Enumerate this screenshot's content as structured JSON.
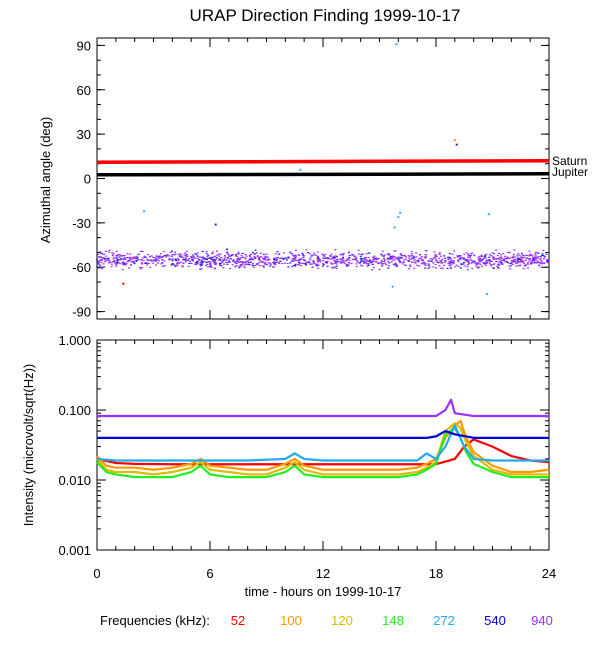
{
  "chart_data": [
    {
      "type": "scatter",
      "title": "URAP Direction Finding  1999-10-17",
      "ylabel": "Azimuthal angle (deg)",
      "xlim": [
        0,
        24
      ],
      "ylim": [
        -95,
        95
      ],
      "yticks": [
        "90",
        "60",
        "30",
        "0",
        "-30",
        "-60",
        "-90"
      ],
      "reference_lines": [
        {
          "name": "Saturn",
          "color": "#ff0000",
          "y": [
            11,
            11.5,
            12
          ]
        },
        {
          "name": "Jupiter",
          "color": "#000000",
          "y": [
            2.5,
            2.8,
            3.2
          ]
        }
      ],
      "cluster": {
        "color": "#9b30ff",
        "color2": "#2020e0",
        "center": -55,
        "spread": 8,
        "count": 1400
      },
      "outliers": [
        {
          "x": 1.4,
          "y": -71,
          "color": "#ff0000"
        },
        {
          "x": 2.5,
          "y": -22,
          "color": "#33aaff"
        },
        {
          "x": 4.2,
          "y": -55,
          "color": "#2020e0"
        },
        {
          "x": 6.3,
          "y": -31,
          "color": "#2020e0"
        },
        {
          "x": 10.8,
          "y": 6,
          "color": "#33aaff"
        },
        {
          "x": 15.8,
          "y": -33,
          "color": "#33aaff"
        },
        {
          "x": 15.7,
          "y": -73,
          "color": "#33aaff"
        },
        {
          "x": 16.1,
          "y": -23,
          "color": "#33aaff"
        },
        {
          "x": 16.0,
          "y": -26,
          "color": "#33aaff"
        },
        {
          "x": 15.9,
          "y": 91,
          "color": "#33aaff"
        },
        {
          "x": 19.0,
          "y": 26,
          "color": "#ff9900"
        },
        {
          "x": 19.1,
          "y": 23,
          "color": "#2020e0"
        },
        {
          "x": 20.8,
          "y": -24,
          "color": "#33aaff"
        },
        {
          "x": 20.7,
          "y": -78,
          "color": "#33aaff"
        }
      ]
    },
    {
      "type": "line",
      "ylabel": "Intensity (microvolt/sqrt(Hz))",
      "xlabel": "time - hours on 1999-10-17",
      "xlim": [
        0,
        24
      ],
      "ylim": [
        0.001,
        1.0
      ],
      "yscale": "log",
      "xticks": [
        "0",
        "6",
        "12",
        "18",
        "24"
      ],
      "yticks": [
        "1.000",
        "0.100",
        "0.010",
        "0.001"
      ],
      "series": [
        {
          "name": "52",
          "color": "#ff0000",
          "x": [
            0,
            1,
            2,
            4,
            6,
            8,
            10,
            12,
            14,
            16,
            18,
            19,
            19.5,
            20,
            21,
            22,
            23,
            24
          ],
          "y": [
            0.02,
            0.0175,
            0.017,
            0.0168,
            0.0168,
            0.0168,
            0.0168,
            0.0168,
            0.0168,
            0.0168,
            0.0168,
            0.02,
            0.03,
            0.038,
            0.03,
            0.022,
            0.019,
            0.018
          ]
        },
        {
          "name": "100",
          "color": "#ff9900",
          "x": [
            0,
            0.5,
            1,
            2,
            3,
            4,
            5,
            5.5,
            6,
            7,
            8,
            9,
            10,
            10.5,
            11,
            12,
            13,
            14,
            15,
            16,
            17,
            17.5,
            18,
            18.5,
            19,
            19.3,
            19.6,
            20,
            21,
            22,
            23,
            24
          ],
          "y": [
            0.022,
            0.016,
            0.015,
            0.015,
            0.014,
            0.015,
            0.017,
            0.02,
            0.016,
            0.015,
            0.014,
            0.014,
            0.017,
            0.02,
            0.016,
            0.014,
            0.014,
            0.014,
            0.014,
            0.014,
            0.015,
            0.017,
            0.02,
            0.04,
            0.06,
            0.07,
            0.04,
            0.025,
            0.016,
            0.013,
            0.013,
            0.014
          ]
        },
        {
          "name": "120",
          "color": "#ddbb00",
          "x": [
            0,
            0.5,
            1,
            2,
            3,
            4,
            5,
            5.5,
            6,
            7,
            8,
            9,
            10,
            10.5,
            11,
            12,
            13,
            14,
            15,
            16,
            17,
            17.5,
            18,
            18.5,
            19,
            19.3,
            19.6,
            20,
            21,
            22,
            23,
            24
          ],
          "y": [
            0.02,
            0.014,
            0.013,
            0.013,
            0.012,
            0.013,
            0.015,
            0.018,
            0.014,
            0.013,
            0.012,
            0.012,
            0.015,
            0.018,
            0.014,
            0.012,
            0.012,
            0.012,
            0.012,
            0.012,
            0.013,
            0.015,
            0.018,
            0.05,
            0.065,
            0.055,
            0.035,
            0.022,
            0.014,
            0.012,
            0.012,
            0.012
          ]
        },
        {
          "name": "148",
          "color": "#22ee22",
          "x": [
            0,
            0.5,
            1,
            2,
            3,
            4,
            5,
            5.5,
            6,
            7,
            8,
            9,
            10,
            10.5,
            11,
            12,
            13,
            14,
            15,
            16,
            17,
            17.5,
            18,
            18.5,
            19,
            19.3,
            19.6,
            20,
            21,
            22,
            23,
            24
          ],
          "y": [
            0.018,
            0.013,
            0.012,
            0.011,
            0.011,
            0.011,
            0.013,
            0.016,
            0.012,
            0.011,
            0.011,
            0.011,
            0.013,
            0.016,
            0.012,
            0.011,
            0.011,
            0.011,
            0.011,
            0.011,
            0.012,
            0.014,
            0.017,
            0.045,
            0.055,
            0.04,
            0.025,
            0.017,
            0.013,
            0.011,
            0.011,
            0.011
          ]
        },
        {
          "name": "272",
          "color": "#22aaee",
          "x": [
            0,
            1,
            2,
            4,
            6,
            8,
            10,
            10.5,
            11,
            12,
            14,
            16,
            17,
            17.5,
            18,
            18.5,
            19,
            19.5,
            20,
            21,
            22,
            23,
            24
          ],
          "y": [
            0.02,
            0.019,
            0.019,
            0.019,
            0.019,
            0.019,
            0.02,
            0.024,
            0.02,
            0.019,
            0.019,
            0.019,
            0.019,
            0.024,
            0.02,
            0.03,
            0.06,
            0.03,
            0.02,
            0.019,
            0.019,
            0.019,
            0.019
          ]
        },
        {
          "name": "540",
          "color": "#0000dd",
          "x": [
            0,
            2,
            4,
            6,
            8,
            10,
            12,
            14,
            16,
            17.5,
            18,
            18.5,
            19,
            20,
            22,
            24
          ],
          "y": [
            0.04,
            0.04,
            0.04,
            0.04,
            0.04,
            0.04,
            0.04,
            0.04,
            0.04,
            0.04,
            0.042,
            0.05,
            0.045,
            0.04,
            0.04,
            0.04
          ]
        },
        {
          "name": "940",
          "color": "#9b30ff",
          "x": [
            0,
            2,
            4,
            6,
            8,
            10,
            12,
            14,
            16,
            18,
            18.5,
            18.8,
            19,
            20,
            22,
            24
          ],
          "y": [
            0.082,
            0.082,
            0.082,
            0.082,
            0.082,
            0.082,
            0.082,
            0.082,
            0.082,
            0.082,
            0.1,
            0.14,
            0.09,
            0.082,
            0.082,
            0.082
          ]
        }
      ]
    }
  ],
  "legend": {
    "label": "Frequencies (kHz):"
  }
}
